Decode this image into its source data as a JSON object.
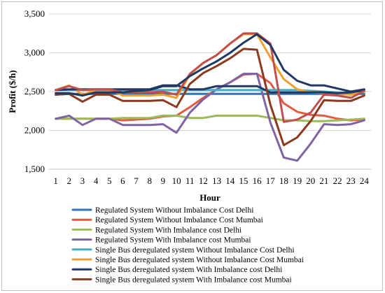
{
  "chart_data": {
    "type": "line",
    "xlabel": "Hour",
    "ylabel": "Profit ($/h)",
    "ylim": [
      1500,
      3500
    ],
    "yticks": [
      "1,500",
      "2,000",
      "2,500",
      "3,000",
      "3,500"
    ],
    "ytick_values": [
      1500,
      2000,
      2500,
      3000,
      3500
    ],
    "x": [
      1,
      2,
      3,
      4,
      5,
      6,
      7,
      8,
      9,
      10,
      11,
      12,
      13,
      14,
      15,
      16,
      17,
      18,
      19,
      20,
      21,
      22,
      23,
      24
    ],
    "grid": "horizontal",
    "legend_position": "bottom",
    "series": [
      {
        "name": "Regulated System Without Imbalance Cost Delhi",
        "color": "#2E75B6",
        "values": [
          2460,
          2470,
          2470,
          2470,
          2470,
          2470,
          2470,
          2470,
          2470,
          2470,
          2470,
          2470,
          2470,
          2470,
          2470,
          2470,
          2470,
          2470,
          2470,
          2470,
          2470,
          2470,
          2470,
          2470
        ]
      },
      {
        "name": "Regulated System Without Imbalance Cost Mumbai",
        "color": "#E15B40",
        "values": [
          2150,
          2150,
          2150,
          2150,
          2150,
          2130,
          2140,
          2150,
          2180,
          2190,
          2300,
          2420,
          2530,
          2620,
          2720,
          2730,
          2610,
          2350,
          2240,
          2200,
          2190,
          2150,
          2130,
          2140
        ]
      },
      {
        "name": "Regulated System With Imbalance cost Delhi",
        "color": "#9BBB59",
        "values": [
          2150,
          2150,
          2150,
          2150,
          2150,
          2160,
          2160,
          2160,
          2190,
          2190,
          2160,
          2160,
          2190,
          2190,
          2190,
          2190,
          2160,
          2130,
          2130,
          2120,
          2120,
          2130,
          2140,
          2150
        ]
      },
      {
        "name": "Regulated System With Imbalance cost Mumbai",
        "color": "#8064A2",
        "values": [
          2150,
          2190,
          2070,
          2150,
          2150,
          2070,
          2070,
          2070,
          2080,
          1970,
          2230,
          2400,
          2530,
          2620,
          2730,
          2730,
          2100,
          1650,
          1610,
          1830,
          2080,
          2070,
          2080,
          2130
        ]
      },
      {
        "name": "Single Bus deregulated system Without Imbalance Cost Delhi",
        "color": "#4BACC6",
        "values": [
          2520,
          2520,
          2520,
          2520,
          2520,
          2520,
          2520,
          2520,
          2520,
          2520,
          2520,
          2520,
          2520,
          2520,
          2520,
          2520,
          2520,
          2520,
          2520,
          2510,
          2500,
          2490,
          2480,
          2520
        ]
      },
      {
        "name": "Single Bus deregulated system Without Imbalance Cost Mumbai",
        "color": "#F0A030",
        "values": [
          2520,
          2580,
          2460,
          2520,
          2520,
          2450,
          2450,
          2450,
          2460,
          2420,
          2720,
          2870,
          2970,
          3120,
          3240,
          3240,
          2940,
          2660,
          2530,
          2490,
          2480,
          2470,
          2460,
          2500
        ]
      },
      {
        "name": "Single Bus deregulated system With Imbalance cost Delhi",
        "color": "#1F3864",
        "values": [
          2520,
          2530,
          2530,
          2530,
          2530,
          2530,
          2530,
          2530,
          2580,
          2580,
          2530,
          2530,
          2570,
          2570,
          2570,
          2570,
          2490,
          2490,
          2490,
          2490,
          2490,
          2480,
          2490,
          2520
        ]
      },
      {
        "name": "Single Bus deregulated system With Imbalance cost Mumbai",
        "color": "#8B3A1E",
        "values": [
          2460,
          2470,
          2370,
          2460,
          2460,
          2380,
          2380,
          2380,
          2390,
          2300,
          2600,
          2740,
          2830,
          2930,
          3050,
          3040,
          2330,
          1810,
          1910,
          2120,
          2390,
          2380,
          2380,
          2450
        ]
      }
    ]
  },
  "overlay_series": [
    {
      "name": "",
      "color": "#C0504D",
      "values": [
        2520,
        2570,
        2520,
        2530,
        2530,
        2490,
        2490,
        2490,
        2500,
        2460,
        2730,
        2870,
        2970,
        3120,
        3250,
        3250,
        3120,
        2110,
        2140,
        2230,
        2460,
        2450,
        2420,
        2510
      ]
    },
    {
      "name": "",
      "color": "#1F3864",
      "values": [
        2480,
        2480,
        2450,
        2490,
        2490,
        2490,
        2510,
        2520,
        2570,
        2570,
        2700,
        2800,
        2890,
        3000,
        3130,
        3240,
        3100,
        2780,
        2640,
        2580,
        2580,
        2540,
        2500,
        2530
      ]
    }
  ]
}
